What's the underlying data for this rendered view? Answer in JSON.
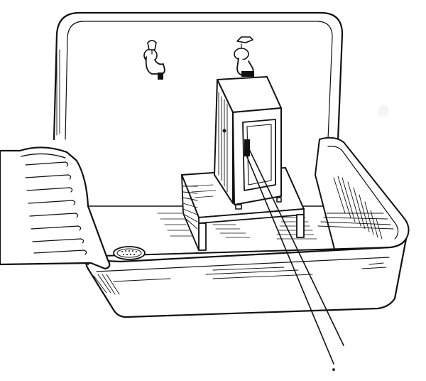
{
  "image": {
    "kind": "line-drawing",
    "subject": "sink-with-lamp-box",
    "colors": {
      "ink": "#111111",
      "paper": "#ffffff",
      "hatch": "#888888"
    }
  }
}
